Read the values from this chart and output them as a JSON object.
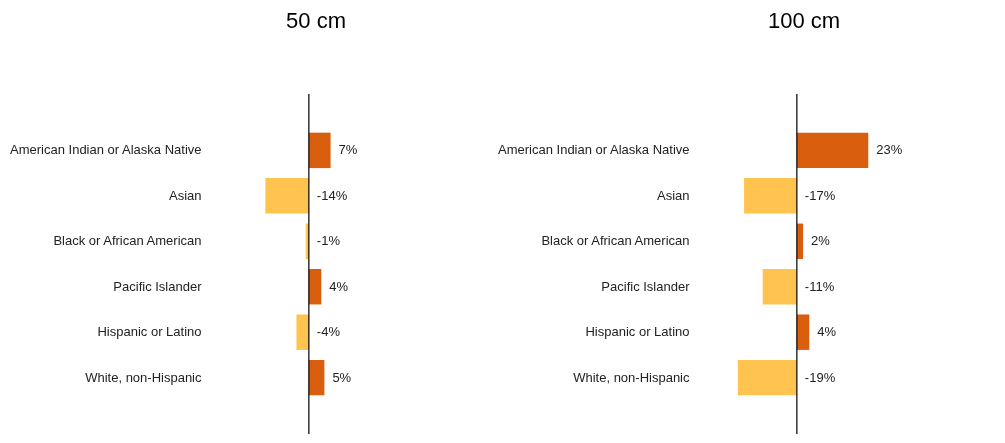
{
  "chart_data": [
    {
      "type": "bar",
      "orientation": "horizontal",
      "title": "50 cm",
      "categories": [
        "American Indian or Alaska Native",
        "Asian",
        "Black or African American",
        "Pacific Islander",
        "Hispanic or Latino",
        "White, non-Hispanic"
      ],
      "values": [
        7,
        -14,
        -1,
        4,
        -4,
        5
      ],
      "colors": [
        "#d95f0e",
        "#fec44f",
        "#fec44f",
        "#d95f0e",
        "#fec44f",
        "#d95f0e"
      ],
      "value_labels": [
        "7%",
        "-14%",
        "-1%",
        "4%",
        "-4%",
        "5%"
      ]
    },
    {
      "type": "bar",
      "orientation": "horizontal",
      "title": "100 cm",
      "categories": [
        "American Indian or Alaska Native",
        "Asian",
        "Black or African American",
        "Pacific Islander",
        "Hispanic or Latino",
        "White, non-Hispanic"
      ],
      "values": [
        23,
        -17,
        2,
        -11,
        4,
        -19
      ],
      "colors": [
        "#d95f0e",
        "#fec44f",
        "#d95f0e",
        "#fec44f",
        "#d95f0e",
        "#fec44f"
      ],
      "value_labels": [
        "23%",
        "-17%",
        "2%",
        "-11%",
        "4%",
        "-19%"
      ]
    }
  ]
}
